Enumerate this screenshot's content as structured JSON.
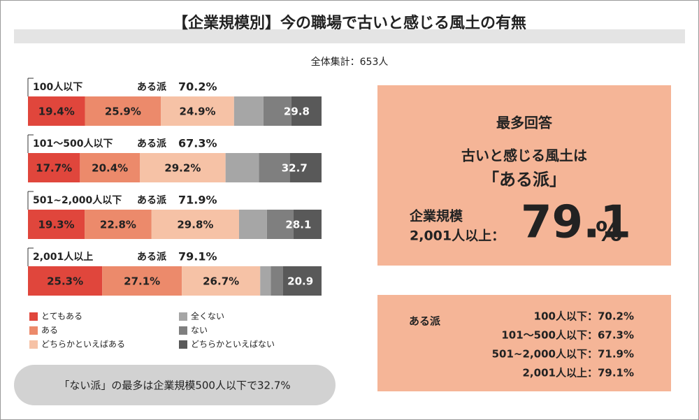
{
  "title": "【企業規模別】今の職場で古いと感じる風土の有無",
  "subtitle": "全体集計：653人",
  "chart_data": {
    "type": "bar",
    "orientation": "horizontal",
    "stacked": true,
    "categories": [
      "100人以下",
      "101～500人以下",
      "501~2,000人以下",
      "2,001人以上"
    ],
    "xlim": [
      0,
      100
    ],
    "group_label": "ある派",
    "aru_totals": [
      70.2,
      67.3,
      71.9,
      79.1
    ],
    "aru_total_labels": [
      "70.2%",
      "67.3%",
      "71.9%",
      "79.1%"
    ],
    "nai_totals": [
      29.8,
      32.7,
      28.1,
      20.9
    ],
    "series": [
      {
        "name": "とてもある",
        "color": "#e0463c",
        "values": [
          19.4,
          17.7,
          19.3,
          25.3
        ],
        "value_labels": [
          "19.4%",
          "17.7%",
          "19.3%",
          "25.3%"
        ]
      },
      {
        "name": "ある",
        "color": "#ec8a6b",
        "values": [
          25.9,
          20.4,
          22.8,
          27.1
        ],
        "value_labels": [
          "25.9%",
          "20.4%",
          "22.8%",
          "27.1%"
        ]
      },
      {
        "name": "どちらかといえばある",
        "color": "#f6c2a6",
        "values": [
          24.9,
          29.2,
          29.8,
          26.7
        ],
        "value_labels": [
          "24.9%",
          "29.2%",
          "29.8%",
          "26.7%"
        ]
      },
      {
        "name": "全くない",
        "color": "#a6a6a6",
        "values": [
          10.0,
          11.4,
          9.5,
          3.6
        ]
      },
      {
        "name": "ない",
        "color": "#7f7f7f",
        "values": [
          9.5,
          10.5,
          9.0,
          4.2
        ]
      },
      {
        "name": "どちらかといえばない",
        "color": "#595959",
        "values": [
          10.3,
          10.8,
          9.6,
          13.1
        ]
      }
    ]
  },
  "highlight": {
    "heading": "最多回答",
    "line1": "古いと感じる風土は",
    "line2": "「ある派」",
    "size_label": "企業規模",
    "size_value": "2,001人以上：",
    "big_value": "79.1",
    "big_unit": "%"
  },
  "summary": {
    "heading": "ある派",
    "rows": [
      "100人以下：70.2%",
      "101～500人以下：67.3%",
      "501~2,000人以下：71.9%",
      "2,001人以上：79.1%"
    ]
  },
  "note": "「ない派」の最多は企業規模500人以下で32.7%"
}
